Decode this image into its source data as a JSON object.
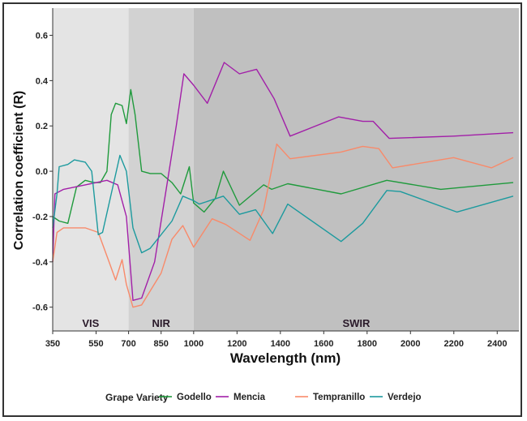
{
  "chart_data": {
    "type": "line",
    "title": "",
    "xlabel": "Wavelength (nm)",
    "ylabel": "Correlation coefficient (R)",
    "xlim": [
      350,
      2500
    ],
    "ylim": [
      -0.705,
      0.72
    ],
    "xticks": [
      350,
      550,
      700,
      850,
      1000,
      1200,
      1400,
      1600,
      1800,
      2000,
      2200,
      2400
    ],
    "yticks": [
      -0.6,
      -0.4,
      -0.2,
      0.0,
      0.2,
      0.4,
      0.6
    ],
    "ytick_labels": [
      "-0.6",
      "-0.4",
      "-0.2",
      "0.0",
      "0.2",
      "0.4",
      "0.6"
    ],
    "regions": [
      {
        "label": "VIS",
        "range": [
          350,
          700
        ],
        "color": "#e4e4e4"
      },
      {
        "label": "NIR",
        "range": [
          700,
          1000
        ],
        "color": "#d2d2d2"
      },
      {
        "label": "SWIR",
        "range": [
          1000,
          2500
        ],
        "color": "#c0c0c0"
      }
    ],
    "legend": {
      "title": "Grape Variety",
      "position": "bottom"
    },
    "series": [
      {
        "name": "Godello",
        "color": "#1f9a3c",
        "x": [
          350,
          380,
          420,
          460,
          500,
          540,
          570,
          600,
          620,
          640,
          670,
          690,
          710,
          730,
          760,
          800,
          850,
          900,
          940,
          980,
          1000,
          1048,
          1100,
          1137,
          1211,
          1323,
          1360,
          1434,
          1680,
          1891,
          2140,
          2474
        ],
        "y": [
          -0.2,
          -0.22,
          -0.23,
          -0.07,
          -0.04,
          -0.05,
          -0.05,
          0.0,
          0.25,
          0.3,
          0.29,
          0.21,
          0.36,
          0.25,
          0.0,
          -0.01,
          -0.01,
          -0.05,
          -0.1,
          0.02,
          -0.14,
          -0.18,
          -0.12,
          0.0,
          -0.15,
          -0.06,
          -0.08,
          -0.055,
          -0.1,
          -0.04,
          -0.08,
          -0.05
        ]
      },
      {
        "name": "Mencia",
        "color": "#a21fa8",
        "x": [
          350,
          360,
          400,
          500,
          600,
          650,
          690,
          720,
          760,
          820,
          870,
          920,
          955,
          1000,
          1063,
          1141,
          1211,
          1290,
          1371,
          1445,
          1668,
          1780,
          1828,
          1902,
          2199,
          2474
        ],
        "y": [
          -0.4,
          -0.1,
          -0.08,
          -0.06,
          -0.04,
          -0.06,
          -0.2,
          -0.57,
          -0.56,
          -0.4,
          -0.1,
          0.2,
          0.43,
          0.38,
          0.3,
          0.48,
          0.43,
          0.45,
          0.32,
          0.155,
          0.24,
          0.22,
          0.22,
          0.145,
          0.155,
          0.17
        ]
      },
      {
        "name": "Tempranillo",
        "color": "#f88a6a",
        "x": [
          350,
          370,
          400,
          500,
          560,
          610,
          640,
          670,
          690,
          720,
          760,
          850,
          900,
          950,
          1000,
          1085,
          1148,
          1260,
          1323,
          1383,
          1445,
          1680,
          1780,
          1854,
          1917,
          2199,
          2374,
          2474
        ],
        "y": [
          -0.4,
          -0.27,
          -0.25,
          -0.25,
          -0.27,
          -0.4,
          -0.48,
          -0.39,
          -0.5,
          -0.6,
          -0.59,
          -0.45,
          -0.3,
          -0.24,
          -0.335,
          -0.21,
          -0.235,
          -0.305,
          -0.17,
          0.12,
          0.055,
          0.085,
          0.11,
          0.1,
          0.015,
          0.06,
          0.015,
          0.06
        ]
      },
      {
        "name": "Verdejo",
        "color": "#1c9a9e",
        "x": [
          350,
          370,
          380,
          420,
          450,
          500,
          530,
          560,
          580,
          620,
          660,
          690,
          720,
          760,
          800,
          900,
          950,
          1000,
          1026,
          1137,
          1211,
          1286,
          1364,
          1434,
          1680,
          1780,
          1891,
          1954,
          2214,
          2474
        ],
        "y": [
          -0.25,
          -0.1,
          0.02,
          0.03,
          0.05,
          0.04,
          0.0,
          -0.28,
          -0.27,
          -0.1,
          0.07,
          0.0,
          -0.25,
          -0.36,
          -0.34,
          -0.22,
          -0.11,
          -0.13,
          -0.145,
          -0.11,
          -0.19,
          -0.17,
          -0.275,
          -0.145,
          -0.31,
          -0.23,
          -0.085,
          -0.09,
          -0.18,
          -0.11
        ]
      }
    ]
  }
}
